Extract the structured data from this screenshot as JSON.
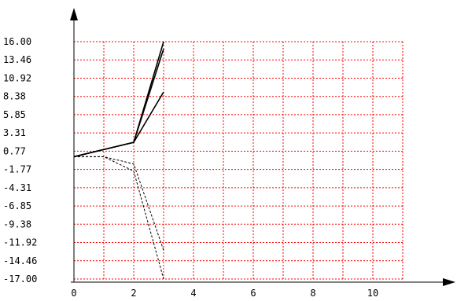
{
  "chart_data": {
    "type": "line",
    "title": "",
    "xlabel": "",
    "ylabel": "",
    "xlim": [
      0,
      11
    ],
    "ylim": [
      -17,
      16
    ],
    "grid": true,
    "x_ticks": [
      "0",
      "2",
      "4",
      "6",
      "8",
      "10"
    ],
    "y_ticks": [
      "16.00",
      "13.46",
      "10.92",
      "8.38",
      "5.85",
      "3.31",
      "0.77",
      "-1.77",
      "-4.31",
      "-6.85",
      "-9.38",
      "-11.92",
      "-14.46",
      "-17.00"
    ],
    "colors": {
      "grid": "#ff0000",
      "series": "#000000"
    },
    "series": [
      {
        "style": "solid",
        "x": [
          0,
          1,
          2,
          3
        ],
        "y": [
          0,
          1,
          2,
          16
        ]
      },
      {
        "style": "solid",
        "x": [
          0,
          1,
          2,
          3
        ],
        "y": [
          0,
          1,
          2,
          15
        ]
      },
      {
        "style": "solid",
        "x": [
          0,
          1,
          2,
          3
        ],
        "y": [
          0,
          1,
          2,
          9
        ]
      },
      {
        "style": "dashed",
        "x": [
          0,
          1,
          2,
          3
        ],
        "y": [
          0,
          0,
          -1,
          -13
        ]
      },
      {
        "style": "dashed",
        "x": [
          0,
          1,
          2,
          3
        ],
        "y": [
          0,
          0,
          -2,
          -17
        ]
      }
    ]
  }
}
